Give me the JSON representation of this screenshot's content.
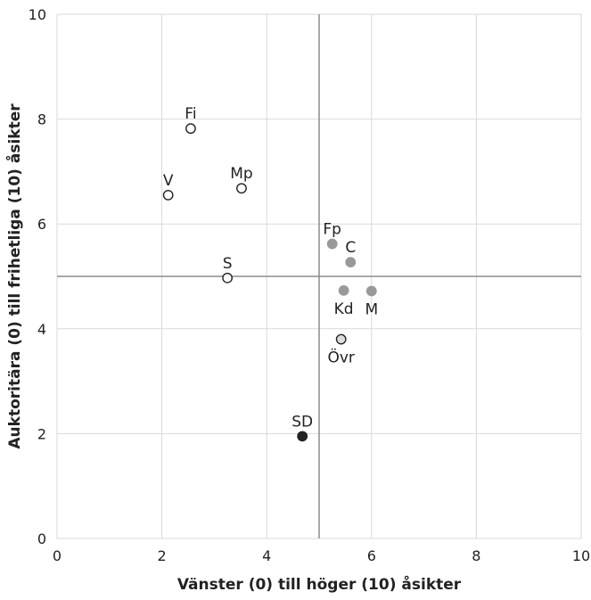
{
  "chart_data": {
    "type": "scatter",
    "title": "",
    "xlabel": "Vänster (0) till höger (10) åsikter",
    "ylabel": "Auktoritära (0) till frihetliga (10) åsikter",
    "xlim": [
      0,
      10
    ],
    "ylim": [
      0,
      10
    ],
    "xticks": [
      0,
      2,
      4,
      6,
      8,
      10
    ],
    "yticks": [
      0,
      2,
      4,
      6,
      8,
      10
    ],
    "grid": true,
    "reference_lines": {
      "x": 5,
      "y": 5
    },
    "points": [
      {
        "label": "Fi",
        "x": 2.55,
        "y": 7.82,
        "fill": "#ffffff",
        "stroke": "#222222",
        "label_pos": "above"
      },
      {
        "label": "V",
        "x": 2.12,
        "y": 6.55,
        "fill": "#ffffff",
        "stroke": "#222222",
        "label_pos": "above"
      },
      {
        "label": "Mp",
        "x": 3.52,
        "y": 6.68,
        "fill": "#ffffff",
        "stroke": "#222222",
        "label_pos": "above"
      },
      {
        "label": "S",
        "x": 3.25,
        "y": 4.97,
        "fill": "#ffffff",
        "stroke": "#222222",
        "label_pos": "above"
      },
      {
        "label": "Fp",
        "x": 5.25,
        "y": 5.62,
        "fill": "#999999",
        "stroke": "#999999",
        "label_pos": "above"
      },
      {
        "label": "C",
        "x": 5.6,
        "y": 5.27,
        "fill": "#999999",
        "stroke": "#999999",
        "label_pos": "above"
      },
      {
        "label": "Kd",
        "x": 5.47,
        "y": 4.73,
        "fill": "#999999",
        "stroke": "#999999",
        "label_pos": "below"
      },
      {
        "label": "M",
        "x": 6.0,
        "y": 4.72,
        "fill": "#999999",
        "stroke": "#999999",
        "label_pos": "below"
      },
      {
        "label": "Övr",
        "x": 5.42,
        "y": 3.8,
        "fill": "#dddddd",
        "stroke": "#222222",
        "label_pos": "below"
      },
      {
        "label": "SD",
        "x": 4.68,
        "y": 1.95,
        "fill": "#222222",
        "stroke": "#222222",
        "label_pos": "above"
      }
    ]
  },
  "colors": {
    "grid": "#d9d9d9",
    "reference": "#8c8c8c",
    "text": "#222222"
  }
}
